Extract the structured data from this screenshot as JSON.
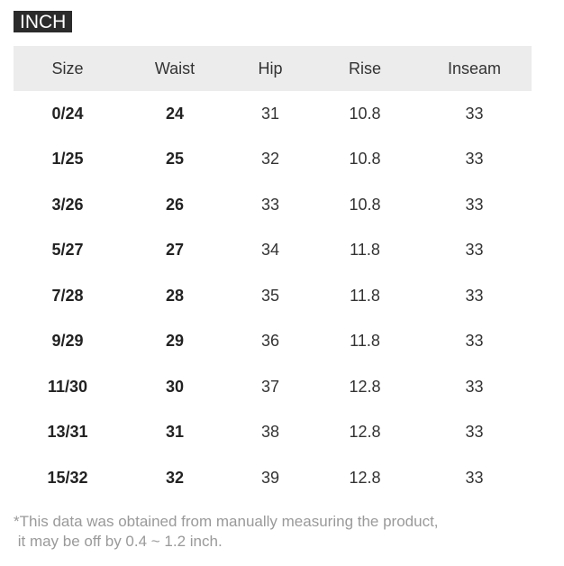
{
  "unit_label": "INCH",
  "table": {
    "headers": [
      "Size",
      "Waist",
      "Hip",
      "Rise",
      "Inseam"
    ],
    "rows": [
      [
        "0/24",
        "24",
        "31",
        "10.8",
        "33"
      ],
      [
        "1/25",
        "25",
        "32",
        "10.8",
        "33"
      ],
      [
        "3/26",
        "26",
        "33",
        "10.8",
        "33"
      ],
      [
        "5/27",
        "27",
        "34",
        "11.8",
        "33"
      ],
      [
        "7/28",
        "28",
        "35",
        "11.8",
        "33"
      ],
      [
        "9/29",
        "29",
        "36",
        "11.8",
        "33"
      ],
      [
        "11/30",
        "30",
        "37",
        "12.8",
        "33"
      ],
      [
        "13/31",
        "31",
        "38",
        "12.8",
        "33"
      ],
      [
        "15/32",
        "32",
        "39",
        "12.8",
        "33"
      ]
    ]
  },
  "note": {
    "line1": "*This data was obtained from manually measuring the product,",
    "line2": " it may be off by 0.4 ~ 1.2 inch."
  }
}
